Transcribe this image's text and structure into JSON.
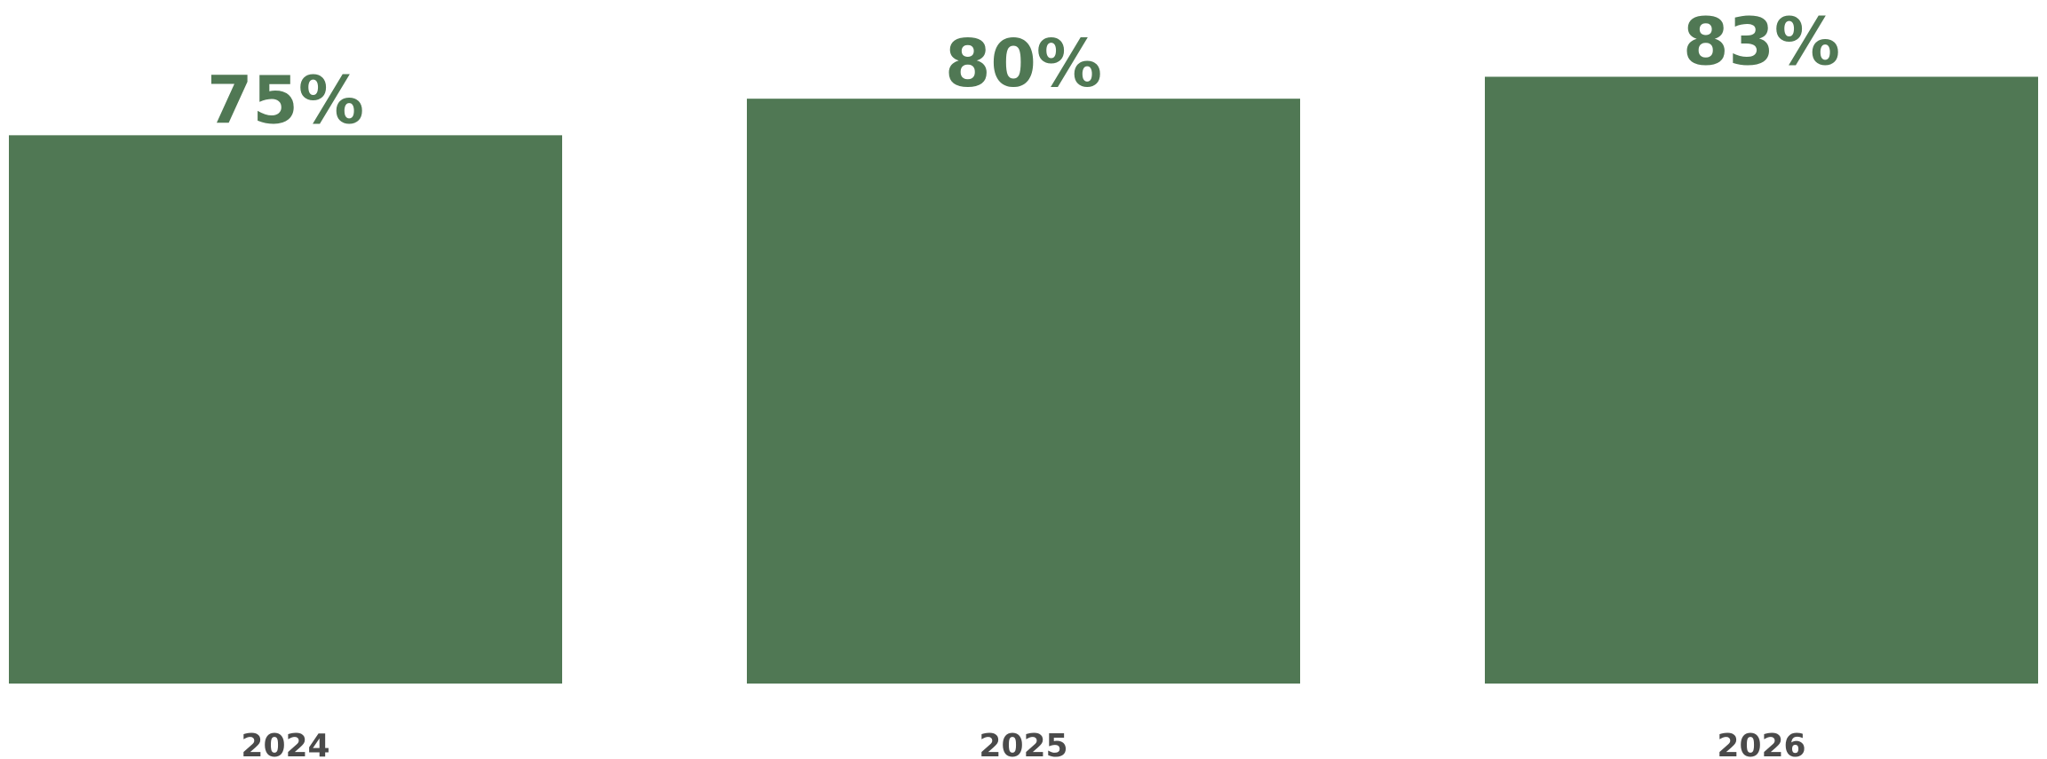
{
  "chart_data": {
    "type": "bar",
    "categories": [
      "2024",
      "2025",
      "2026"
    ],
    "values": [
      75,
      80,
      83
    ],
    "value_labels": [
      "75%",
      "80%",
      "83%"
    ],
    "title": "",
    "xlabel": "",
    "ylabel": "",
    "ylim": [
      0,
      93.5
    ],
    "grid": false,
    "legend": "none"
  },
  "colors": {
    "bar": "#507854",
    "value_label": "#507854",
    "tick_label": "#4a4a4a"
  }
}
